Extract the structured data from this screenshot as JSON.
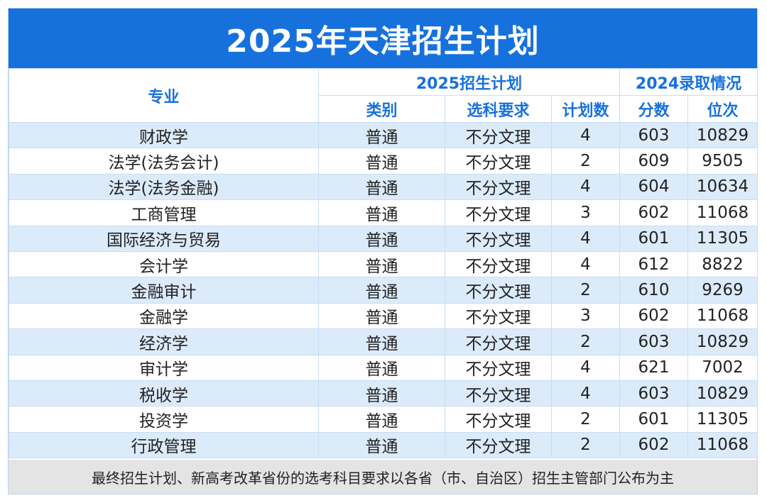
{
  "title": "2025年天津招生计划",
  "header": {
    "major": "专业",
    "plan_group": "2025招生计划",
    "admit_group": "2024录取情况",
    "category": "类别",
    "subject_req": "选科要求",
    "plan_count": "计划数",
    "score": "分数",
    "rank": "位次"
  },
  "rows": [
    {
      "major": "财政学",
      "category": "普通",
      "req": "不分文理",
      "count": "4",
      "score": "603",
      "rank": "10829"
    },
    {
      "major": "法学(法务会计)",
      "category": "普通",
      "req": "不分文理",
      "count": "2",
      "score": "609",
      "rank": "9505"
    },
    {
      "major": "法学(法务金融)",
      "category": "普通",
      "req": "不分文理",
      "count": "4",
      "score": "604",
      "rank": "10634"
    },
    {
      "major": "工商管理",
      "category": "普通",
      "req": "不分文理",
      "count": "3",
      "score": "602",
      "rank": "11068"
    },
    {
      "major": "国际经济与贸易",
      "category": "普通",
      "req": "不分文理",
      "count": "4",
      "score": "601",
      "rank": "11305"
    },
    {
      "major": "会计学",
      "category": "普通",
      "req": "不分文理",
      "count": "4",
      "score": "612",
      "rank": "8822"
    },
    {
      "major": "金融审计",
      "category": "普通",
      "req": "不分文理",
      "count": "2",
      "score": "610",
      "rank": "9269"
    },
    {
      "major": "金融学",
      "category": "普通",
      "req": "不分文理",
      "count": "3",
      "score": "602",
      "rank": "11068"
    },
    {
      "major": "经济学",
      "category": "普通",
      "req": "不分文理",
      "count": "2",
      "score": "603",
      "rank": "10829"
    },
    {
      "major": "审计学",
      "category": "普通",
      "req": "不分文理",
      "count": "4",
      "score": "621",
      "rank": "7002"
    },
    {
      "major": "税收学",
      "category": "普通",
      "req": "不分文理",
      "count": "4",
      "score": "603",
      "rank": "10829"
    },
    {
      "major": "投资学",
      "category": "普通",
      "req": "不分文理",
      "count": "2",
      "score": "601",
      "rank": "11305"
    },
    {
      "major": "行政管理",
      "category": "普通",
      "req": "不分文理",
      "count": "2",
      "score": "602",
      "rank": "11068"
    }
  ],
  "footer": "最终招生计划、新高考改革省份的选考科目要求以各省（市、自治区）招生主管部门公布为主",
  "colors": {
    "accent": "#1671dc",
    "stripe": "#dcebfa",
    "footer_bg": "#e4e4e4"
  }
}
